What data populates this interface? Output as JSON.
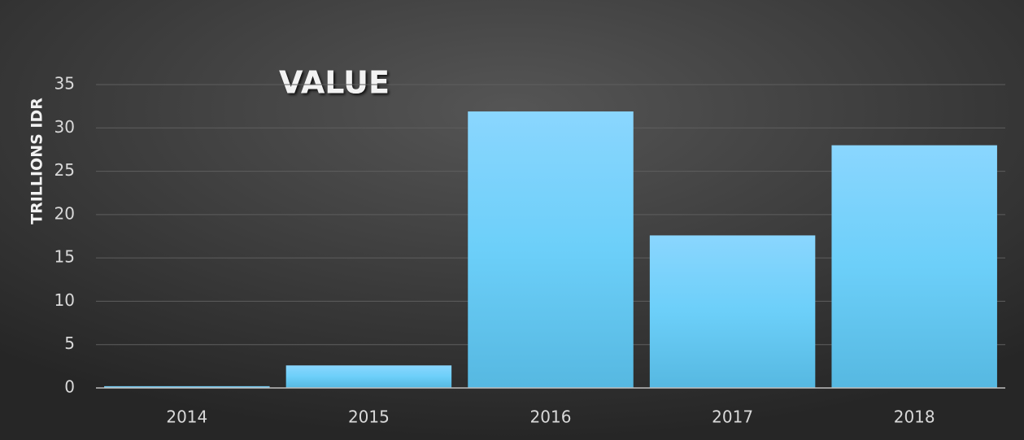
{
  "chart_data": {
    "type": "bar",
    "title": "VALUE",
    "y_label": "TRILLIONS IDR",
    "categories": [
      "2014",
      "2015",
      "2016",
      "2017",
      "2018"
    ],
    "values": [
      0.2,
      2.6,
      31.9,
      17.6,
      28.0
    ],
    "color": "#6dcdf7",
    "ylim": [
      0,
      35
    ],
    "yticks": [
      0,
      5,
      10,
      15,
      20,
      25,
      30,
      35
    ],
    "grid": true
  }
}
